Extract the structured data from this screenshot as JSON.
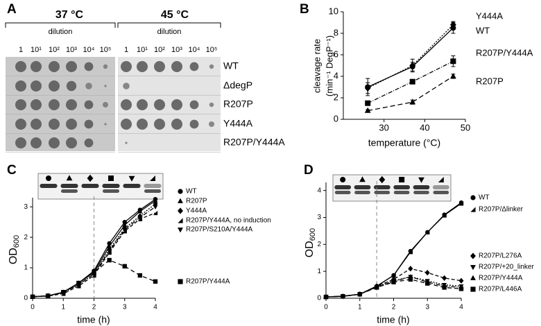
{
  "panel_a": {
    "panel": "A",
    "temperatures": [
      "37 °C",
      "45 °C"
    ],
    "dilution_label": "dilution",
    "dilutions": [
      "1",
      "10¹",
      "10²",
      "10³",
      "10⁴",
      "10⁵"
    ],
    "strains": [
      "WT",
      "ΔdegP",
      "R207P",
      "Y444A",
      "R207P/Y444A"
    ]
  },
  "chart_data": [
    {
      "type": "line",
      "panel": "B",
      "xlabel": "temperature (°C)",
      "ylabel": [
        "cleavage rate",
        "(min⁻¹ DegP⁻¹)"
      ],
      "x": [
        26,
        37,
        47
      ],
      "xlim": [
        20,
        50
      ],
      "xticks": [
        30,
        40,
        50
      ],
      "ylim": [
        0,
        10
      ],
      "yticks": [
        0,
        2,
        4,
        6,
        8,
        10
      ],
      "series": [
        {
          "name": "Y444A",
          "color": "#000000",
          "marker": "diamond",
          "dash": "2,2",
          "values": [
            2.9,
            5.0,
            8.8
          ],
          "errors": [
            0.5,
            0.6,
            0.3
          ]
        },
        {
          "name": "WT",
          "color": "#000000",
          "marker": "circle",
          "dash": "none",
          "values": [
            3.0,
            4.9,
            8.5
          ],
          "errors": [
            0.8,
            0.4,
            0.5
          ]
        },
        {
          "name": "R207P/Y444A",
          "color": "#000000",
          "marker": "square",
          "dash": "6,2,1,2",
          "values": [
            1.5,
            3.5,
            5.4
          ],
          "errors": [
            0.2,
            0.2,
            0.5
          ]
        },
        {
          "name": "R207P",
          "color": "#000000",
          "marker": "triangle",
          "dash": "7,4",
          "values": [
            0.8,
            1.6,
            4.0
          ],
          "errors": [
            0.1,
            0.2,
            0.2
          ]
        }
      ]
    },
    {
      "type": "line",
      "panel": "C",
      "xlabel": "time (h)",
      "ylabel": "OD",
      "ylabel_sub": "600",
      "vline": 2,
      "x": [
        0,
        0.5,
        1,
        1.5,
        2,
        2.5,
        3,
        3.5,
        4
      ],
      "xlim": [
        0,
        4
      ],
      "xticks": [
        0,
        1,
        2,
        3,
        4
      ],
      "ylim": [
        0,
        3.3
      ],
      "yticks": [
        0,
        1,
        2,
        3
      ],
      "series": [
        {
          "name": "WT",
          "color": "#000000",
          "marker": "circle",
          "dash": "none",
          "values": [
            0.05,
            0.08,
            0.2,
            0.5,
            0.9,
            1.8,
            2.5,
            2.9,
            3.25
          ]
        },
        {
          "name": "R207P",
          "color": "#000000",
          "marker": "triangle",
          "dash": "none",
          "values": [
            0.05,
            0.08,
            0.2,
            0.5,
            0.85,
            1.7,
            2.4,
            2.85,
            3.2
          ]
        },
        {
          "name": "Y444A",
          "color": "#000000",
          "marker": "diamond",
          "dash": "2,2",
          "values": [
            0.05,
            0.08,
            0.18,
            0.45,
            0.8,
            1.6,
            2.3,
            2.7,
            3.1
          ]
        },
        {
          "name": "R207P/Y444A, no induction",
          "color": "#000000",
          "marker": "wedge",
          "dash": "5,3",
          "values": [
            0.05,
            0.07,
            0.15,
            0.4,
            0.75,
            1.5,
            2.2,
            2.6,
            2.8
          ]
        },
        {
          "name": "R207P/S210A/Y444A",
          "color": "#000000",
          "marker": "invtriangle",
          "dash": "6,2,1,2",
          "values": [
            0.05,
            0.08,
            0.18,
            0.45,
            0.8,
            1.55,
            2.25,
            2.65,
            3.0
          ]
        },
        {
          "name": "R207P/Y444A",
          "color": "#000000",
          "marker": "square",
          "dash": "6,4",
          "values": [
            0.05,
            0.08,
            0.2,
            0.5,
            0.85,
            1.25,
            1.05,
            0.75,
            0.55
          ]
        }
      ]
    },
    {
      "type": "line",
      "panel": "D",
      "xlabel": "time (h)",
      "ylabel": "OD",
      "ylabel_sub": "600",
      "vline": 1.5,
      "x": [
        0,
        0.5,
        1,
        1.5,
        2,
        2.5,
        3,
        3.5,
        4
      ],
      "xlim": [
        0,
        4
      ],
      "xticks": [
        0,
        1,
        2,
        3,
        4
      ],
      "ylim": [
        0,
        4.3
      ],
      "yticks": [
        0,
        1,
        2,
        3,
        4
      ],
      "series": [
        {
          "name": "WT",
          "color": "#000000",
          "marker": "circle",
          "dash": "none",
          "values": [
            0.05,
            0.08,
            0.15,
            0.45,
            0.85,
            1.75,
            2.45,
            3.1,
            3.55
          ]
        },
        {
          "name": "R207P/Δlinker",
          "color": "#000000",
          "marker": "wedge",
          "dash": "none",
          "values": [
            0.05,
            0.08,
            0.15,
            0.45,
            0.85,
            1.72,
            2.45,
            3.08,
            3.52
          ]
        },
        {
          "name": "R207P/L276A",
          "color": "#000000",
          "marker": "diamond",
          "dash": "5,3",
          "values": [
            0.05,
            0.07,
            0.15,
            0.45,
            0.7,
            1.1,
            0.95,
            0.75,
            0.65
          ]
        },
        {
          "name": "R207P/+20_linker",
          "color": "#000000",
          "marker": "invtriangle",
          "dash": "2,2",
          "values": [
            0.05,
            0.07,
            0.15,
            0.42,
            0.65,
            0.8,
            0.65,
            0.5,
            0.45
          ]
        },
        {
          "name": "R207P/Y444A",
          "color": "#000000",
          "marker": "triangle",
          "dash": "6,2,1,2",
          "values": [
            0.05,
            0.07,
            0.15,
            0.42,
            0.62,
            0.8,
            0.6,
            0.45,
            0.4
          ]
        },
        {
          "name": "R207P/L446A",
          "color": "#000000",
          "marker": "square",
          "dash": "6,4",
          "values": [
            0.05,
            0.07,
            0.15,
            0.4,
            0.6,
            0.7,
            0.55,
            0.4,
            0.35
          ]
        }
      ]
    }
  ]
}
